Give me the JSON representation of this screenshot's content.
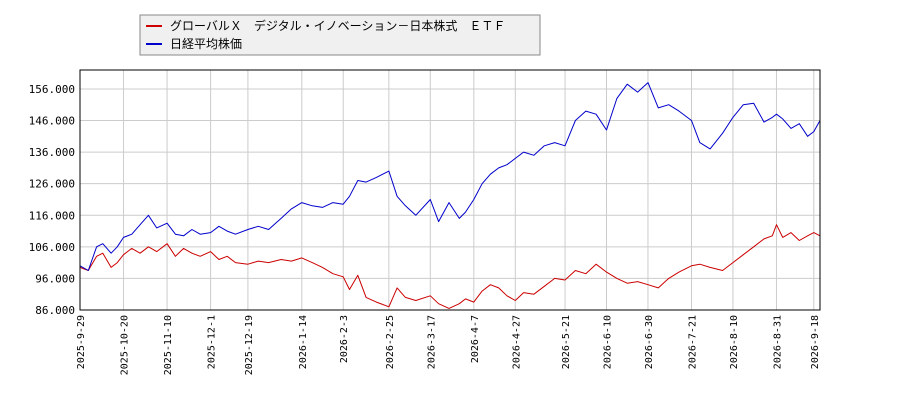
{
  "chart_data": {
    "type": "line",
    "title": "",
    "xlabel": "",
    "ylabel": "",
    "ylim": [
      86000,
      162000
    ],
    "yticks": [
      86000,
      96000,
      106000,
      116000,
      126000,
      136000,
      146000,
      156000
    ],
    "ytick_labels": [
      "86.000",
      "96.000",
      "106.000",
      "116.000",
      "126.000",
      "136.000",
      "146.000",
      "156.000"
    ],
    "xlim": [
      "2025-09-29",
      "2026-09-21"
    ],
    "xtick_labels": [
      "2025-9-29",
      "2025-10-20",
      "2025-11-10",
      "2025-12-1",
      "2025-12-19",
      "2026-1-14",
      "2026-2-3",
      "2026-2-25",
      "2026-3-17",
      "2026-4-7",
      "2026-4-27",
      "2026-5-21",
      "2026-6-10",
      "2026-6-30",
      "2026-7-21",
      "2026-8-10",
      "2026-8-31",
      "2026-9-18"
    ],
    "xtick_dates": [
      "2025-09-29",
      "2025-10-20",
      "2025-11-10",
      "2025-12-01",
      "2025-12-19",
      "2026-01-14",
      "2026-02-03",
      "2026-02-25",
      "2026-03-17",
      "2026-04-07",
      "2026-04-27",
      "2026-05-21",
      "2026-06-10",
      "2026-06-30",
      "2026-07-21",
      "2026-08-10",
      "2026-08-31",
      "2026-09-18"
    ],
    "grid": true,
    "legend_position": "top-left",
    "series": [
      {
        "name": "グローバルＸ　デジタル・イノベーション－日本株式　ＥＴＦ",
        "color": "#cc0000",
        "x": [
          "2025-09-29",
          "2025-10-03",
          "2025-10-07",
          "2025-10-10",
          "2025-10-14",
          "2025-10-17",
          "2025-10-20",
          "2025-10-24",
          "2025-10-28",
          "2025-11-01",
          "2025-11-05",
          "2025-11-10",
          "2025-11-14",
          "2025-11-18",
          "2025-11-22",
          "2025-11-26",
          "2025-12-01",
          "2025-12-05",
          "2025-12-09",
          "2025-12-13",
          "2025-12-19",
          "2025-12-24",
          "2025-12-29",
          "2026-01-04",
          "2026-01-09",
          "2026-01-14",
          "2026-01-19",
          "2026-01-24",
          "2026-01-29",
          "2026-02-03",
          "2026-02-06",
          "2026-02-10",
          "2026-02-14",
          "2026-02-19",
          "2026-02-25",
          "2026-03-01",
          "2026-03-05",
          "2026-03-10",
          "2026-03-17",
          "2026-03-21",
          "2026-03-26",
          "2026-03-31",
          "2026-04-03",
          "2026-04-07",
          "2026-04-11",
          "2026-04-15",
          "2026-04-19",
          "2026-04-23",
          "2026-04-27",
          "2026-05-01",
          "2026-05-06",
          "2026-05-11",
          "2026-05-16",
          "2026-05-21",
          "2026-05-26",
          "2026-05-31",
          "2026-06-05",
          "2026-06-10",
          "2026-06-15",
          "2026-06-20",
          "2026-06-25",
          "2026-06-30",
          "2026-07-05",
          "2026-07-10",
          "2026-07-15",
          "2026-07-21",
          "2026-07-25",
          "2026-07-30",
          "2026-08-05",
          "2026-08-10",
          "2026-08-15",
          "2026-08-20",
          "2026-08-25",
          "2026-08-29",
          "2026-08-31",
          "2026-09-03",
          "2026-09-07",
          "2026-09-11",
          "2026-09-15",
          "2026-09-18",
          "2026-09-21"
        ],
        "values": [
          99500,
          98500,
          103000,
          104000,
          99500,
          101000,
          103500,
          105500,
          104000,
          106000,
          104500,
          107000,
          103000,
          105500,
          104000,
          103000,
          104500,
          102000,
          103000,
          101000,
          100500,
          101500,
          101000,
          102000,
          101500,
          102500,
          101000,
          99500,
          97500,
          96500,
          92500,
          97000,
          90000,
          88500,
          87000,
          93000,
          90000,
          89000,
          90500,
          88000,
          86500,
          88000,
          89500,
          88500,
          92000,
          94000,
          93000,
          90500,
          89000,
          91500,
          91000,
          93500,
          96000,
          95500,
          98500,
          97500,
          100500,
          98000,
          96000,
          94500,
          95000,
          94000,
          93000,
          96000,
          98000,
          100000,
          100500,
          99500,
          98500,
          101000,
          103500,
          106000,
          108500,
          109500,
          113000,
          109000,
          110500,
          108000,
          109500,
          110500,
          109500
        ]
      },
      {
        "name": "日経平均株価",
        "color": "#0000cc",
        "x": [
          "2025-09-29",
          "2025-10-03",
          "2025-10-07",
          "2025-10-10",
          "2025-10-14",
          "2025-10-17",
          "2025-10-20",
          "2025-10-24",
          "2025-10-28",
          "2025-11-01",
          "2025-11-05",
          "2025-11-10",
          "2025-11-14",
          "2025-11-18",
          "2025-11-22",
          "2025-11-26",
          "2025-12-01",
          "2025-12-05",
          "2025-12-09",
          "2025-12-13",
          "2025-12-19",
          "2025-12-24",
          "2025-12-29",
          "2026-01-04",
          "2026-01-09",
          "2026-01-14",
          "2026-01-19",
          "2026-01-24",
          "2026-01-29",
          "2026-02-03",
          "2026-02-06",
          "2026-02-10",
          "2026-02-14",
          "2026-02-19",
          "2026-02-25",
          "2026-03-01",
          "2026-03-05",
          "2026-03-10",
          "2026-03-17",
          "2026-03-21",
          "2026-03-26",
          "2026-03-31",
          "2026-04-03",
          "2026-04-07",
          "2026-04-11",
          "2026-04-15",
          "2026-04-19",
          "2026-04-23",
          "2026-04-27",
          "2026-05-01",
          "2026-05-06",
          "2026-05-11",
          "2026-05-16",
          "2026-05-21",
          "2026-05-26",
          "2026-05-31",
          "2026-06-05",
          "2026-06-10",
          "2026-06-15",
          "2026-06-20",
          "2026-06-25",
          "2026-06-30",
          "2026-07-05",
          "2026-07-10",
          "2026-07-15",
          "2026-07-21",
          "2026-07-25",
          "2026-07-30",
          "2026-08-05",
          "2026-08-10",
          "2026-08-15",
          "2026-08-20",
          "2026-08-25",
          "2026-08-29",
          "2026-08-31",
          "2026-09-03",
          "2026-09-07",
          "2026-09-11",
          "2026-09-15",
          "2026-09-18",
          "2026-09-21"
        ],
        "values": [
          100000,
          98500,
          106000,
          107000,
          104000,
          106000,
          109000,
          110000,
          113000,
          116000,
          112000,
          113500,
          110000,
          109500,
          111500,
          110000,
          110500,
          112500,
          111000,
          110000,
          111500,
          112500,
          111500,
          115000,
          118000,
          120000,
          119000,
          118500,
          120000,
          119500,
          122000,
          127000,
          126500,
          128000,
          130000,
          122000,
          119000,
          116000,
          121000,
          114000,
          120000,
          115000,
          117000,
          121000,
          126000,
          129000,
          131000,
          132000,
          134000,
          136000,
          135000,
          138000,
          139000,
          138000,
          146000,
          149000,
          148000,
          143000,
          153000,
          157500,
          155000,
          158000,
          150000,
          151000,
          149000,
          146000,
          139000,
          137000,
          142000,
          147000,
          151000,
          151500,
          145500,
          147000,
          148000,
          146500,
          143500,
          145000,
          141000,
          142500,
          146000
        ]
      }
    ]
  }
}
